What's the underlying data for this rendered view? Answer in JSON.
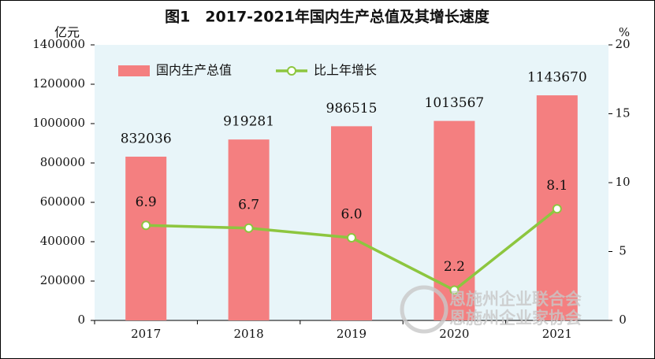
{
  "chart_data": {
    "type": "bar",
    "title": "图1　2017-2021年国内生产总值及其增长速度",
    "y_label": "亿元",
    "y2_label": "%",
    "categories": [
      "2017",
      "2018",
      "2019",
      "2020",
      "2021"
    ],
    "series": [
      {
        "name": "国内生产总值",
        "type": "bar",
        "color": "#f47f80",
        "values": [
          832036,
          919281,
          986515,
          1013567,
          1143670
        ]
      },
      {
        "name": "比上年增长",
        "type": "line",
        "axis": "y2",
        "color": "#8dc63f",
        "values": [
          6.9,
          6.7,
          6.0,
          2.2,
          8.1
        ],
        "value_labels": [
          "6.9",
          "6.7",
          "6.0",
          "2.2",
          "8.1"
        ]
      }
    ],
    "ylim": [
      0,
      1400000
    ],
    "yticks": [
      0,
      200000,
      400000,
      600000,
      800000,
      1000000,
      1200000,
      1400000
    ],
    "y2lim": [
      0,
      20
    ],
    "y2ticks": [
      0,
      5,
      10,
      15,
      20
    ],
    "legend": "top-left",
    "background": "#e8f5f9"
  },
  "watermark": [
    "恩施州企业联合会",
    "恩施州企业家协会"
  ]
}
